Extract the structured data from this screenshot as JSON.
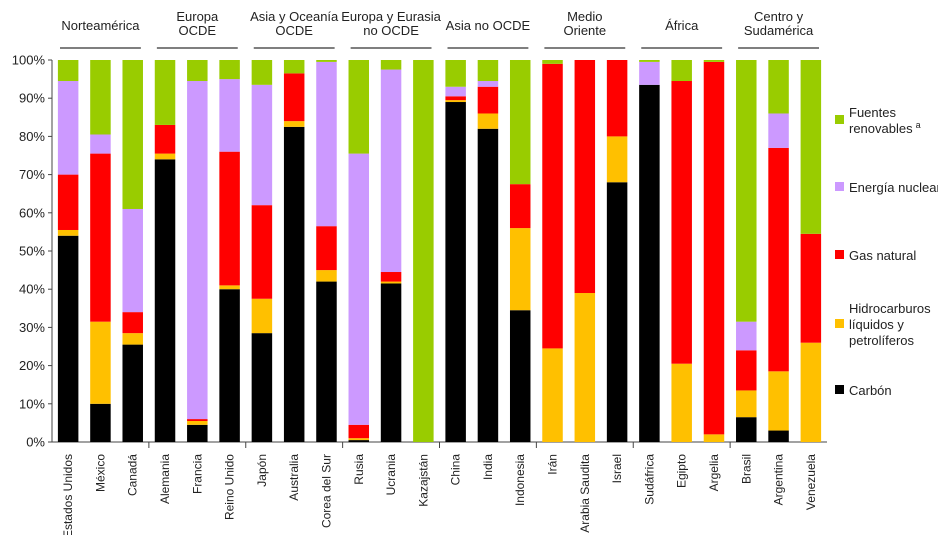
{
  "chart_data": {
    "type": "bar",
    "stacked": true,
    "ylim": [
      0,
      100
    ],
    "yticks": [
      "0%",
      "10%",
      "20%",
      "30%",
      "40%",
      "50%",
      "60%",
      "70%",
      "80%",
      "90%",
      "100%"
    ],
    "series_order": [
      "Carbón",
      "Hidrocarburos líquidos y petrolíferos",
      "Gas natural",
      "Energía nuclear",
      "Fuentes renovables"
    ],
    "colors": {
      "Carbón": "#000000",
      "Hidrocarburos líquidos y petrolíferos": "#ffc000",
      "Gas natural": "#ff0000",
      "Energía nuclear": "#cc99ff",
      "Fuentes renovables": "#99cc00"
    },
    "legend": {
      "position": "right",
      "items": [
        {
          "series": "Fuentes renovables",
          "lines": [
            "Fuentes",
            "renovables"
          ],
          "sup": "a"
        },
        {
          "series": "Energía nuclear",
          "lines": [
            "Energía nuclear"
          ],
          "sup": ""
        },
        {
          "series": "Gas natural",
          "lines": [
            "Gas natural"
          ],
          "sup": ""
        },
        {
          "series": "Hidrocarburos líquidos y petrolíferos",
          "lines": [
            "Hidrocarburos",
            "líquidos y",
            "petrolíferos"
          ],
          "sup": ""
        },
        {
          "series": "Carbón",
          "lines": [
            "Carbón"
          ],
          "sup": ""
        }
      ]
    },
    "groups": [
      {
        "name": [
          "Norteamérica"
        ],
        "countries": [
          {
            "name": "Estados Unidos",
            "values": [
              54,
              1.5,
              14.5,
              24.5,
              5.5
            ]
          },
          {
            "name": "México",
            "values": [
              10,
              21.5,
              44,
              5,
              19.5
            ]
          },
          {
            "name": "Canadá",
            "values": [
              25.5,
              3,
              5.5,
              27,
              39
            ]
          }
        ]
      },
      {
        "name": [
          "Europa",
          "OCDE"
        ],
        "countries": [
          {
            "name": "Alemania",
            "values": [
              74,
              1.5,
              7.5,
              0,
              17
            ]
          },
          {
            "name": "Francia",
            "values": [
              4.5,
              1,
              0.5,
              88.5,
              5.5
            ]
          },
          {
            "name": "Reino Unido",
            "values": [
              40,
              1,
              35,
              19,
              5
            ]
          }
        ]
      },
      {
        "name": [
          "Asia y Oceanía",
          "OCDE"
        ],
        "countries": [
          {
            "name": "Japón",
            "values": [
              28.5,
              9,
              24.5,
              31.5,
              6.5
            ]
          },
          {
            "name": "Australia",
            "values": [
              82.5,
              1.5,
              12.5,
              0,
              3.5
            ]
          },
          {
            "name": "Corea del Sur",
            "values": [
              42,
              3,
              11.5,
              43,
              0.5
            ]
          }
        ]
      },
      {
        "name": [
          "Europa y Eurasia",
          "no OCDE"
        ],
        "countries": [
          {
            "name": "Rusia",
            "values": [
              0.5,
              0.5,
              3.5,
              71,
              24.5
            ]
          },
          {
            "name": "Ucrania",
            "values": [
              41.5,
              0.5,
              2.5,
              53,
              2.5
            ]
          },
          {
            "name": "Kazajstán",
            "values": [
              0,
              0,
              0,
              0,
              100
            ]
          }
        ]
      },
      {
        "name": [
          "Asia no OCDE"
        ],
        "countries": [
          {
            "name": "China",
            "values": [
              89,
              0.5,
              1,
              2.5,
              7
            ]
          },
          {
            "name": "India",
            "values": [
              82,
              4,
              7,
              1.5,
              5.5
            ]
          },
          {
            "name": "Indonesia",
            "values": [
              34.5,
              21.5,
              11.5,
              0,
              32.5
            ]
          }
        ]
      },
      {
        "name": [
          "Medio",
          "Oriente"
        ],
        "countries": [
          {
            "name": "Irán",
            "values": [
              0,
              24.5,
              74.5,
              0,
              1
            ]
          },
          {
            "name": "Arabia Saudita",
            "values": [
              0,
              39,
              61,
              0,
              0
            ]
          },
          {
            "name": "Israel",
            "values": [
              68,
              12,
              20,
              0,
              0
            ]
          }
        ]
      },
      {
        "name": [
          "África"
        ],
        "countries": [
          {
            "name": "Sudáfrica",
            "values": [
              93.5,
              0,
              0,
              6,
              0.5
            ]
          },
          {
            "name": "Egipto",
            "values": [
              0,
              20.5,
              74,
              0,
              5.5
            ]
          },
          {
            "name": "Argelia",
            "values": [
              0,
              2,
              97.5,
              0,
              0.5
            ]
          }
        ]
      },
      {
        "name": [
          "Centro y",
          "Sudamérica"
        ],
        "countries": [
          {
            "name": "Brasil",
            "values": [
              6.5,
              7,
              10.5,
              7.5,
              68.5
            ]
          },
          {
            "name": "Argentina",
            "values": [
              3,
              15.5,
              58.5,
              9,
              14
            ]
          },
          {
            "name": "Venezuela",
            "values": [
              0,
              26,
              28.5,
              0,
              45.5
            ]
          }
        ]
      }
    ]
  }
}
